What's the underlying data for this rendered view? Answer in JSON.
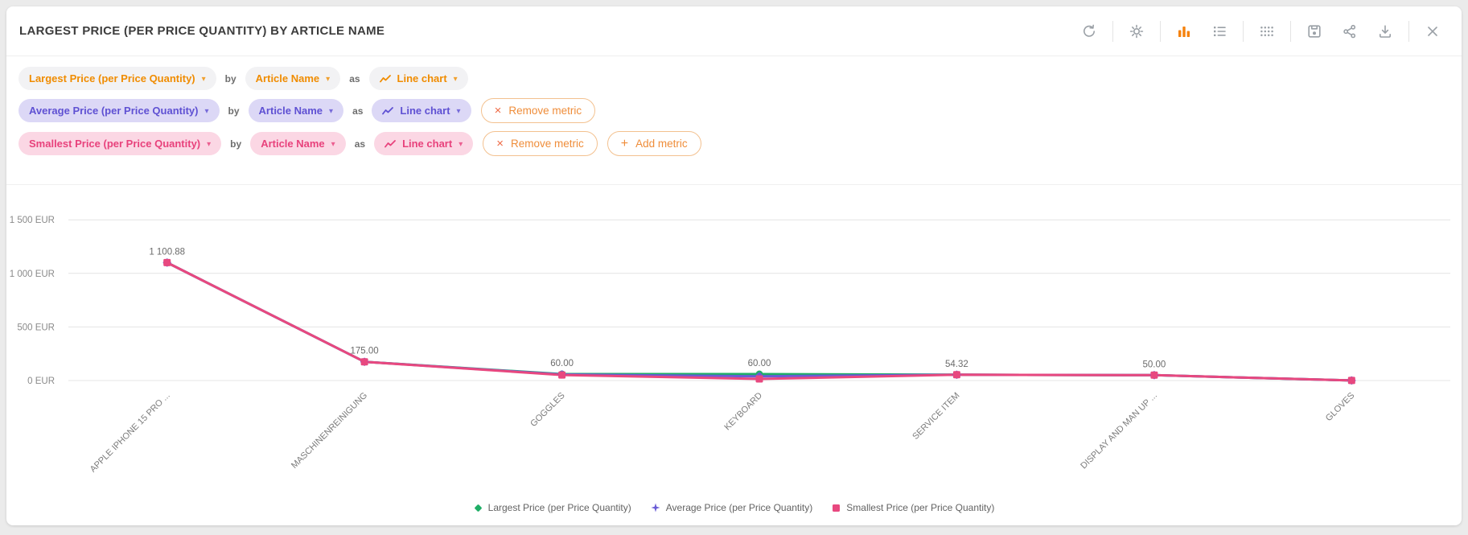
{
  "theme": {
    "accent_color": "#f5820d"
  },
  "header": {
    "title": "LARGEST PRICE (PER PRICE QUANTITY) BY ARTICLE NAME",
    "toolbar_icons": [
      "refresh",
      "settings",
      "bar-chart",
      "list",
      "grid",
      "save",
      "share",
      "download",
      "close"
    ],
    "active_icon": "bar-chart"
  },
  "metrics": {
    "connector_by": "by",
    "connector_as": "as",
    "rows": [
      {
        "metric": "Largest Price (per Price Quantity)",
        "dimension": "Article Name",
        "chart_type": "Line chart",
        "theme_color": "#f08c00",
        "pill_bg": "#f2f2f4"
      },
      {
        "metric": "Average Price (per Price Quantity)",
        "dimension": "Article Name",
        "chart_type": "Line chart",
        "theme_color": "#5f51d3",
        "pill_bg": "#dcd8f6",
        "remove_label": "Remove metric"
      },
      {
        "metric": "Smallest Price (per Price Quantity)",
        "dimension": "Article Name",
        "chart_type": "Line chart",
        "theme_color": "#e8427c",
        "pill_bg": "#fbd7e4",
        "remove_label": "Remove metric",
        "add_label": "Add metric"
      }
    ]
  },
  "chart_data": {
    "type": "line",
    "unit": "EUR",
    "categories": [
      "APPLE IPHONE 15 PRO ...",
      "MASCHINENREINIGUNG",
      "GOGGLES",
      "KEYBOARD",
      "SERVICE ITEM",
      "DISPLAY AND MAN UP ...",
      "GLOVES"
    ],
    "series": [
      {
        "name": "Largest Price (per Price Quantity)",
        "color": "#1fae66",
        "legend_marker": "diamond",
        "point_marker": "circle",
        "values": [
          1100.88,
          175.0,
          60.0,
          60.0,
          54.32,
          50.0,
          1.0
        ]
      },
      {
        "name": "Average Price (per Price Quantity)",
        "color": "#6a5cd6",
        "legend_marker": "star",
        "point_marker": "diamond",
        "values": [
          1100.88,
          175.0,
          56.0,
          40.0,
          54.32,
          50.0,
          1.0
        ]
      },
      {
        "name": "Smallest Price (per Price Quantity)",
        "color": "#e8487f",
        "legend_marker": "square",
        "point_marker": "square",
        "values": [
          1100.88,
          175.0,
          52.0,
          15.0,
          54.32,
          50.0,
          1.0
        ]
      }
    ],
    "point_labels": [
      "1 100.88",
      "175.00",
      "60.00",
      "60.00",
      "54.32",
      "50.00",
      ""
    ],
    "y_ticks": [
      {
        "value": 1500,
        "label": "1 500 EUR"
      },
      {
        "value": 1000,
        "label": "1 000 EUR"
      },
      {
        "value": 500,
        "label": "500 EUR"
      },
      {
        "value": 0,
        "label": "0 EUR"
      }
    ],
    "ylim": [
      0,
      1680
    ],
    "grid": true,
    "legend_position": "bottom",
    "x_label_rotation": -45
  }
}
